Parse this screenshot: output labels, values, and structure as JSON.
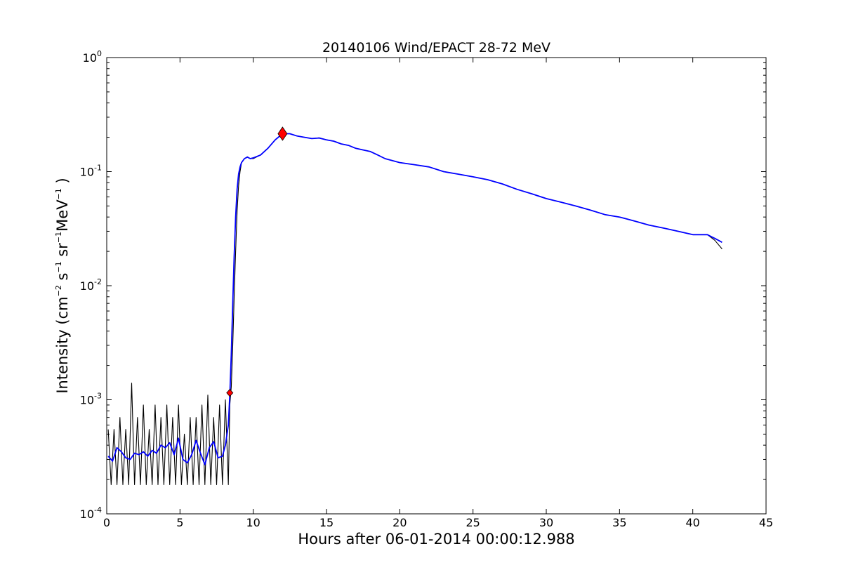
{
  "chart_data": {
    "type": "line",
    "title": "20140106 Wind/EPACT 28-72 MeV",
    "xlabel": "Hours after 06-01-2014 00:00:12.988",
    "ylabel": {
      "prefix": "Intensity (cm",
      "cm_exp": "−2",
      "s": " s",
      "s_exp": "−1",
      "sr": " sr",
      "sr_exp": "−1",
      "mev": "MeV",
      "mev_exp": "−1",
      "suffix": " )"
    },
    "xlim": [
      0,
      45
    ],
    "ylim": [
      0.0001,
      1
    ],
    "yscale": "log",
    "x_ticks": [
      "0",
      "5",
      "10",
      "15",
      "20",
      "25",
      "30",
      "35",
      "40",
      "45"
    ],
    "y_ticks": [
      {
        "base": "10",
        "exp": "-4"
      },
      {
        "base": "10",
        "exp": "-3"
      },
      {
        "base": "10",
        "exp": "-2"
      },
      {
        "base": "10",
        "exp": "-1"
      },
      {
        "base": "10",
        "exp": "0"
      }
    ],
    "grid": false,
    "legend": "none",
    "colors": {
      "raw": "#000000",
      "smoothed": "#0000ff",
      "marker": "#ff0000"
    },
    "series": [
      {
        "style": "raw",
        "color": "#000000",
        "x": [
          0.1,
          0.3,
          0.5,
          0.7,
          0.9,
          1.1,
          1.3,
          1.5,
          1.7,
          1.9,
          2.1,
          2.3,
          2.5,
          2.7,
          2.9,
          3.1,
          3.3,
          3.5,
          3.7,
          3.9,
          4.1,
          4.3,
          4.5,
          4.7,
          4.9,
          5.1,
          5.3,
          5.5,
          5.7,
          5.9,
          6.1,
          6.3,
          6.5,
          6.7,
          6.9,
          7.1,
          7.3,
          7.5,
          7.7,
          7.9,
          8.1,
          8.3,
          8.4,
          8.5,
          8.6,
          8.7,
          8.8,
          8.9,
          9.0,
          9.1,
          9.2,
          9.4,
          9.6,
          9.8,
          10.0,
          10.5,
          11.0,
          11.5,
          12.0,
          12.5,
          13.0,
          13.5,
          14.0,
          14.5,
          15.0,
          15.5,
          16.0,
          16.5,
          17.0,
          17.5,
          18.0,
          18.5,
          19.0,
          20.0,
          21.0,
          22.0,
          23.0,
          24.0,
          25.0,
          26.0,
          27.0,
          28.0,
          29.0,
          30.0,
          31.0,
          32.0,
          33.0,
          34.0,
          35.0,
          36.0,
          37.0,
          38.0,
          39.0,
          40.0,
          41.0,
          41.5,
          42.0
        ],
        "y": [
          0.00055,
          0.00018,
          0.00055,
          0.00018,
          0.0007,
          0.00018,
          0.00055,
          0.00018,
          0.0014,
          0.00018,
          0.0007,
          0.00018,
          0.0009,
          0.00018,
          0.00055,
          0.00018,
          0.0009,
          0.00018,
          0.0007,
          0.00018,
          0.0009,
          0.00018,
          0.0007,
          0.00018,
          0.0009,
          0.00018,
          0.0005,
          0.00018,
          0.0007,
          0.00018,
          0.0007,
          0.00018,
          0.0009,
          0.00018,
          0.0011,
          0.00018,
          0.0007,
          0.00018,
          0.0009,
          0.00018,
          0.001,
          0.00018,
          0.0009,
          0.0013,
          0.003,
          0.008,
          0.02,
          0.045,
          0.075,
          0.1,
          0.12,
          0.13,
          0.135,
          0.13,
          0.13,
          0.14,
          0.16,
          0.19,
          0.215,
          0.215,
          0.205,
          0.2,
          0.195,
          0.198,
          0.19,
          0.185,
          0.175,
          0.17,
          0.16,
          0.155,
          0.15,
          0.14,
          0.13,
          0.12,
          0.115,
          0.11,
          0.1,
          0.095,
          0.09,
          0.085,
          0.078,
          0.07,
          0.064,
          0.058,
          0.054,
          0.05,
          0.046,
          0.042,
          0.04,
          0.037,
          0.034,
          0.032,
          0.03,
          0.028,
          0.028,
          0.025,
          0.021
        ]
      },
      {
        "style": "smoothed",
        "color": "#0000ff",
        "x": [
          0.1,
          0.4,
          0.7,
          1.0,
          1.3,
          1.6,
          1.9,
          2.2,
          2.5,
          2.8,
          3.1,
          3.4,
          3.7,
          4.0,
          4.3,
          4.6,
          4.9,
          5.2,
          5.5,
          5.8,
          6.1,
          6.4,
          6.7,
          7.0,
          7.3,
          7.6,
          7.9,
          8.1,
          8.3,
          8.4,
          8.5,
          8.6,
          8.7,
          8.8,
          8.9,
          9.0,
          9.1,
          9.2,
          9.4,
          9.6,
          9.8,
          10.0,
          10.5,
          11.0,
          11.5,
          12.0,
          12.5,
          13.0,
          13.5,
          14.0,
          14.5,
          15.0,
          15.5,
          16.0,
          16.5,
          17.0,
          17.5,
          18.0,
          18.5,
          19.0,
          20.0,
          21.0,
          22.0,
          23.0,
          24.0,
          25.0,
          26.0,
          27.0,
          28.0,
          29.0,
          30.0,
          31.0,
          32.0,
          33.0,
          34.0,
          35.0,
          36.0,
          37.0,
          38.0,
          39.0,
          40.0,
          41.0,
          41.5,
          42.0
        ],
        "y": [
          0.00032,
          0.00029,
          0.00038,
          0.00035,
          0.00031,
          0.0003,
          0.00034,
          0.00033,
          0.00035,
          0.00032,
          0.00036,
          0.00034,
          0.0004,
          0.00038,
          0.00042,
          0.00033,
          0.00046,
          0.0003,
          0.00028,
          0.00033,
          0.00044,
          0.00034,
          0.00027,
          0.00038,
          0.00043,
          0.00031,
          0.00032,
          0.0004,
          0.0006,
          0.0011,
          0.0025,
          0.007,
          0.018,
          0.04,
          0.07,
          0.095,
          0.11,
          0.12,
          0.13,
          0.134,
          0.13,
          0.132,
          0.14,
          0.16,
          0.19,
          0.215,
          0.215,
          0.205,
          0.2,
          0.195,
          0.197,
          0.19,
          0.185,
          0.175,
          0.17,
          0.16,
          0.155,
          0.15,
          0.14,
          0.13,
          0.12,
          0.115,
          0.11,
          0.1,
          0.095,
          0.09,
          0.085,
          0.078,
          0.07,
          0.064,
          0.058,
          0.054,
          0.05,
          0.046,
          0.042,
          0.04,
          0.037,
          0.034,
          0.032,
          0.03,
          0.028,
          0.028,
          0.026,
          0.024
        ]
      }
    ],
    "markers": [
      {
        "x": 8.4,
        "y": 0.00115,
        "shape": "diamond",
        "size": "small",
        "color": "#ff0000"
      },
      {
        "x": 12.0,
        "y": 0.215,
        "shape": "diamond",
        "size": "large",
        "color": "#ff0000"
      }
    ]
  }
}
